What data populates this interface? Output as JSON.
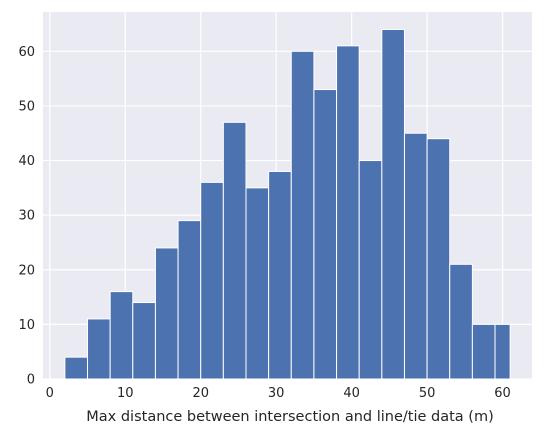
{
  "chart_data": {
    "type": "bar",
    "title": "",
    "xlabel": "Max distance between intersection and line/tie data (m)",
    "ylabel": "",
    "xlim": [
      -0.9,
      63.9
    ],
    "ylim": [
      0,
      67.2
    ],
    "xticks": [
      0,
      10,
      20,
      30,
      40,
      50,
      60
    ],
    "yticks": [
      0,
      10,
      20,
      30,
      40,
      50,
      60
    ],
    "grid": true,
    "bin_edges": [
      2.0,
      5.0,
      8.0,
      11.0,
      14.0,
      17.0,
      20.0,
      23.0,
      26.0,
      29.0,
      32.0,
      35.0,
      38.0,
      41.0,
      44.0,
      47.0,
      50.0,
      53.0,
      56.0,
      59.0,
      61.0
    ],
    "values": [
      4,
      11,
      16,
      14,
      24,
      29,
      36,
      47,
      35,
      38,
      60,
      53,
      61,
      40,
      64,
      45,
      44,
      21,
      10,
      10
    ],
    "colors": {
      "bar": "#4c72b0",
      "bar_edge": "#ffffff",
      "background": "#eaeaf2",
      "grid": "#ffffff"
    }
  }
}
